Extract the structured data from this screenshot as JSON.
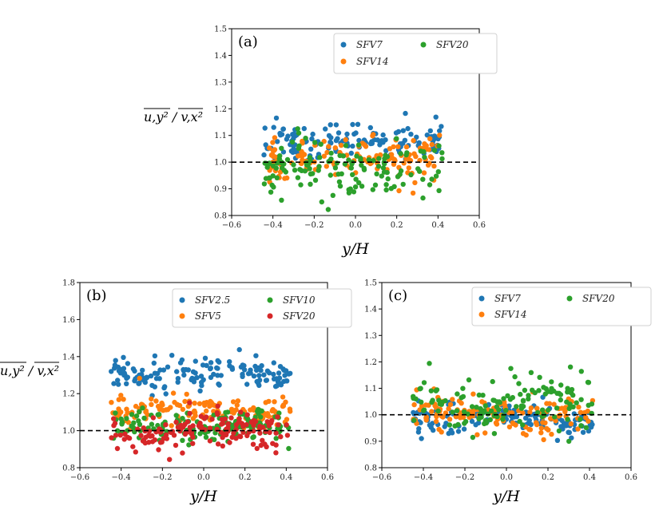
{
  "chart_data": [
    {
      "type": "scatter",
      "panel_label": "(a)",
      "xlabel": "y/H",
      "ylabel": "u,y² / v,x²",
      "xlim": [
        -0.6,
        0.6
      ],
      "ylim": [
        0.8,
        1.5
      ],
      "xticks": [
        "−0.6",
        "−0.4",
        "−0.2",
        "0.0",
        "0.2",
        "0.4",
        "0.6"
      ],
      "yticks": [
        "0.8",
        "0.9",
        "1.0",
        "1.1",
        "1.2",
        "1.3",
        "1.4",
        "1.5"
      ],
      "reference_line_y": 1.0,
      "legend": {
        "position": "top-right",
        "columns": 2
      },
      "series": [
        {
          "name": "SFV7",
          "color": "#1f77b4",
          "x_range": [
            -0.45,
            0.42
          ],
          "mean": 1.08,
          "spread": 0.035,
          "n": 140
        },
        {
          "name": "SFV14",
          "color": "#ff7f0e",
          "x_range": [
            -0.45,
            0.42
          ],
          "mean": 1.02,
          "spread": 0.04,
          "n": 140
        },
        {
          "name": "SFV20",
          "color": "#2ca02c",
          "x_range": [
            -0.45,
            0.42
          ],
          "mean": 0.98,
          "spread": 0.055,
          "n": 140
        }
      ]
    },
    {
      "type": "scatter",
      "panel_label": "(b)",
      "xlabel": "y/H",
      "ylabel": "u,y² / v,x²",
      "xlim": [
        -0.6,
        0.6
      ],
      "ylim": [
        0.8,
        1.8
      ],
      "xticks": [
        "−0.6",
        "−0.4",
        "−0.2",
        "0.0",
        "0.2",
        "0.4",
        "0.6"
      ],
      "yticks": [
        "0.8",
        "1.0",
        "1.2",
        "1.4",
        "1.6",
        "1.8"
      ],
      "reference_line_y": 1.0,
      "legend": {
        "position": "top-right",
        "columns": 2
      },
      "series": [
        {
          "name": "SFV2.5",
          "color": "#1f77b4",
          "x_range": [
            -0.45,
            0.42
          ],
          "mean": 1.31,
          "spread": 0.04,
          "n": 150
        },
        {
          "name": "SFV5",
          "color": "#ff7f0e",
          "x_range": [
            -0.45,
            0.42
          ],
          "mean": 1.11,
          "spread": 0.04,
          "n": 150
        },
        {
          "name": "SFV10",
          "color": "#2ca02c",
          "x_range": [
            -0.45,
            0.42
          ],
          "mean": 1.02,
          "spread": 0.04,
          "n": 150
        },
        {
          "name": "SFV20",
          "color": "#d62728",
          "x_range": [
            -0.45,
            0.42
          ],
          "mean": 1.0,
          "spread": 0.045,
          "n": 150
        }
      ]
    },
    {
      "type": "scatter",
      "panel_label": "(c)",
      "xlabel": "y/H",
      "ylabel": "",
      "xlim": [
        -0.6,
        0.6
      ],
      "ylim": [
        0.8,
        1.5
      ],
      "xticks": [
        "−0.6",
        "−0.4",
        "−0.2",
        "0.0",
        "0.2",
        "0.4",
        "0.6"
      ],
      "yticks": [
        "0.8",
        "0.9",
        "1.0",
        "1.1",
        "1.2",
        "1.3",
        "1.4",
        "1.5"
      ],
      "reference_line_y": 1.0,
      "legend": {
        "position": "top-right",
        "columns": 2
      },
      "series": [
        {
          "name": "SFV7",
          "color": "#1f77b4",
          "x_range": [
            -0.45,
            0.42
          ],
          "mean": 0.99,
          "spread": 0.03,
          "n": 140
        },
        {
          "name": "SFV14",
          "color": "#ff7f0e",
          "x_range": [
            -0.45,
            0.42
          ],
          "mean": 1.0,
          "spread": 0.035,
          "n": 140
        },
        {
          "name": "SFV20",
          "color": "#2ca02c",
          "x_range": [
            -0.45,
            0.42
          ],
          "mean": 1.05,
          "spread": 0.05,
          "n": 140
        }
      ]
    }
  ]
}
